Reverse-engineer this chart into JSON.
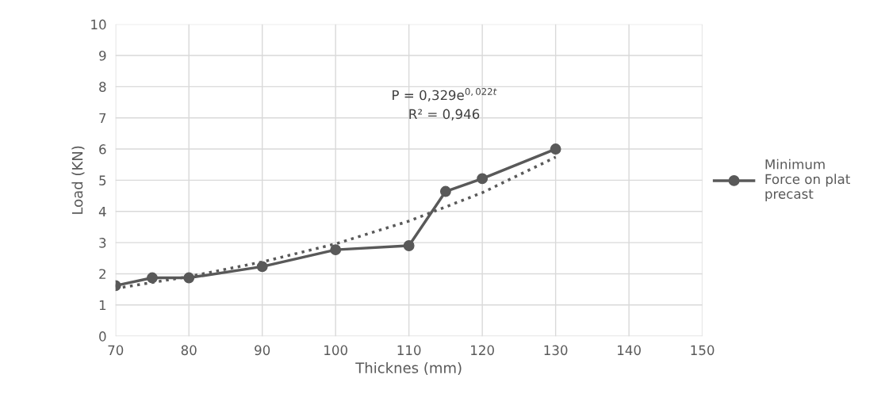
{
  "chart_data": {
    "type": "line",
    "xlabel": "Thicknes (mm)",
    "ylabel": "Load (KN)",
    "xlim": [
      70,
      150
    ],
    "xticks": [
      70,
      80,
      90,
      100,
      110,
      120,
      130,
      140,
      150
    ],
    "ylim": [
      0,
      10
    ],
    "yticks": [
      0,
      1,
      2,
      3,
      4,
      5,
      6,
      7,
      8,
      9,
      10
    ],
    "grid": true,
    "legend": "right",
    "series": [
      {
        "name": "Minimum\nForce on plat\nprecast",
        "color": "#595959",
        "marker": "circle",
        "line_style": "solid",
        "x": [
          70,
          75,
          80,
          90,
          100,
          110,
          115,
          120,
          130
        ],
        "values": [
          1.62,
          1.87,
          1.87,
          2.23,
          2.77,
          2.9,
          4.64,
          5.05,
          6.0
        ]
      },
      {
        "type": "line",
        "color": "#595959",
        "marker": "none",
        "line_style": "dotted",
        "x": [
          70,
          80,
          90,
          100,
          110,
          120,
          130
        ],
        "values": [
          1.53,
          1.91,
          2.38,
          2.96,
          3.69,
          4.6,
          5.74
        ]
      }
    ],
    "annotations": [
      "P = 0,329e$^{0,022t}$\nR² = 0,946"
    ]
  }
}
